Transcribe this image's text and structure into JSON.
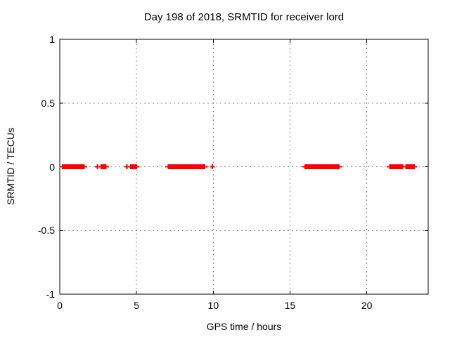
{
  "window": {
    "background_color": "#ffffff"
  },
  "chart_data": {
    "type": "scatter",
    "title": "Day 198 of 2018, SRMTID for receiver lord",
    "xlabel": "GPS time / hours",
    "ylabel": "SRMTID / TECUs",
    "xlim": [
      0,
      24
    ],
    "ylim": [
      -1,
      1
    ],
    "xticks": [
      0,
      5,
      10,
      15,
      20
    ],
    "xtick_labels": [
      "0",
      "5",
      "10",
      "15",
      "20"
    ],
    "yticks": [
      -1,
      -0.5,
      0,
      0.5,
      1
    ],
    "ytick_labels": [
      "-1",
      "-0.5",
      "0",
      "0.5",
      "1"
    ],
    "grid": true,
    "grid_color": "#8c8c8c",
    "border_color": "#000000",
    "legend": "none",
    "marker": "plus",
    "marker_color": "#ff0000",
    "series": [
      {
        "name": "SRMTID",
        "y_value": 0,
        "segments_hours": [
          [
            0.14,
            1.62
          ],
          [
            2.66,
            3.04
          ],
          [
            4.58,
            5.04
          ],
          [
            7.02,
            9.48
          ],
          [
            15.93,
            18.23
          ],
          [
            21.45,
            22.37
          ],
          [
            22.52,
            23.13
          ]
        ],
        "isolated_points_hours": [
          2.44,
          4.38,
          9.94
        ]
      }
    ]
  }
}
